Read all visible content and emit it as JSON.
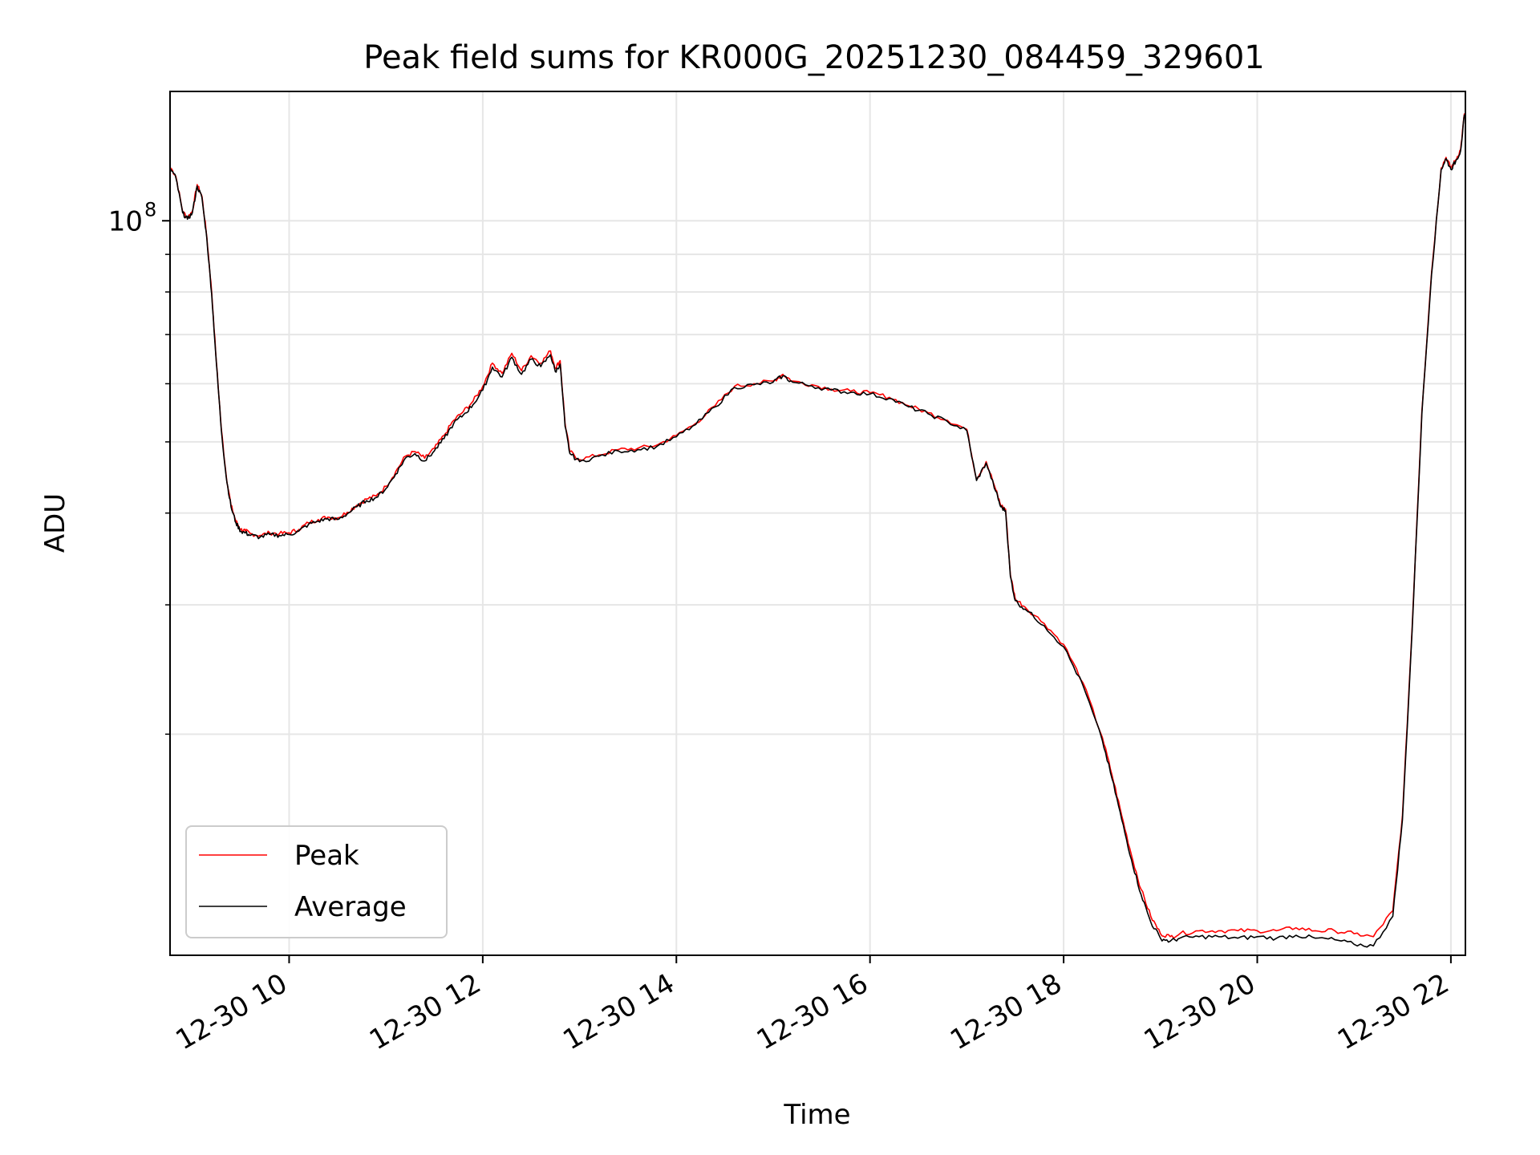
{
  "chart_data": {
    "type": "line",
    "title": "Peak field sums for KR000G_20251230_084459_329601",
    "xlabel": "Time",
    "ylabel": "ADU",
    "yscale": "log",
    "xlim": [
      8.77,
      22.15
    ],
    "ylim": [
      10000000,
      150000000
    ],
    "x_ticks": [
      {
        "value": 10,
        "label": "12-30 10"
      },
      {
        "value": 12,
        "label": "12-30 12"
      },
      {
        "value": 14,
        "label": "12-30 14"
      },
      {
        "value": 16,
        "label": "12-30 16"
      },
      {
        "value": 18,
        "label": "12-30 18"
      },
      {
        "value": 20,
        "label": "12-30 20"
      },
      {
        "value": 22,
        "label": "12-30 22"
      }
    ],
    "y_major_ticks": [
      {
        "value": 100000000,
        "base": "10",
        "exp": "8"
      }
    ],
    "y_minor_ticks": [
      20000000,
      30000000,
      40000000,
      50000000,
      60000000,
      70000000,
      80000000,
      90000000
    ],
    "grid": true,
    "legend": {
      "position": "lower-left",
      "entries": [
        "Peak",
        "Average"
      ]
    },
    "series": [
      {
        "name": "Peak",
        "color": "#ff0000",
        "x": [
          8.78,
          8.83,
          8.9,
          8.95,
          9.0,
          9.05,
          9.1,
          9.15,
          9.2,
          9.25,
          9.3,
          9.35,
          9.4,
          9.45,
          9.5,
          9.55,
          9.6,
          9.7,
          9.8,
          9.9,
          10.0,
          10.1,
          10.2,
          10.3,
          10.4,
          10.5,
          10.6,
          10.7,
          10.8,
          10.9,
          11.0,
          11.1,
          11.2,
          11.3,
          11.4,
          11.5,
          11.6,
          11.7,
          11.8,
          11.9,
          12.0,
          12.1,
          12.2,
          12.3,
          12.4,
          12.5,
          12.6,
          12.7,
          12.75,
          12.8,
          12.85,
          12.9,
          13.0,
          13.2,
          13.4,
          13.6,
          13.8,
          14.0,
          14.2,
          14.4,
          14.6,
          14.8,
          15.0,
          15.1,
          15.2,
          15.4,
          15.6,
          15.8,
          16.0,
          16.2,
          16.4,
          16.6,
          16.8,
          17.0,
          17.1,
          17.2,
          17.3,
          17.35,
          17.4,
          17.45,
          17.5,
          17.6,
          17.8,
          18.0,
          18.2,
          18.4,
          18.5,
          18.6,
          18.7,
          18.8,
          18.9,
          19.0,
          19.1,
          19.2,
          19.4,
          19.6,
          19.8,
          20.0,
          20.2,
          20.4,
          20.6,
          20.8,
          21.0,
          21.2,
          21.4,
          21.5,
          21.6,
          21.7,
          21.8,
          21.9,
          21.95,
          22.0,
          22.05,
          22.1,
          22.14
        ],
        "y": [
          118000000,
          115000000,
          103000000,
          101000000,
          103000000,
          112000000,
          108000000,
          95000000,
          80000000,
          64000000,
          52000000,
          45000000,
          41000000,
          39000000,
          38000000,
          37800000,
          37500000,
          37300000,
          37600000,
          37500000,
          37600000,
          38000000,
          38800000,
          39200000,
          39500000,
          39400000,
          40100000,
          41000000,
          41800000,
          42200000,
          43500000,
          45500000,
          47800000,
          48500000,
          47500000,
          49000000,
          51000000,
          53500000,
          55000000,
          56800000,
          59500000,
          64000000,
          62000000,
          66000000,
          62500000,
          65500000,
          64000000,
          66500000,
          63000000,
          64500000,
          53000000,
          48500000,
          47300000,
          48000000,
          48800000,
          49000000,
          49500000,
          51000000,
          53000000,
          56000000,
          59500000,
          60000000,
          60500000,
          61800000,
          60500000,
          59800000,
          59000000,
          58600000,
          58300000,
          57500000,
          56000000,
          54800000,
          53500000,
          52000000,
          44500000,
          47000000,
          43000000,
          41000000,
          40500000,
          33000000,
          30600000,
          29800000,
          28300000,
          26500000,
          23500000,
          19800000,
          17600000,
          15500000,
          13700000,
          12300000,
          11300000,
          10700000,
          10600000,
          10700000,
          10800000,
          10800000,
          10800000,
          10800000,
          10800000,
          10900000,
          10800000,
          10800000,
          10700000,
          10600000,
          11500000,
          15500000,
          28000000,
          55000000,
          85000000,
          118000000,
          122000000,
          118000000,
          121000000,
          125000000,
          140000000
        ]
      },
      {
        "name": "Average",
        "color": "#000000",
        "x": [
          8.78,
          8.83,
          8.9,
          8.95,
          9.0,
          9.05,
          9.1,
          9.15,
          9.2,
          9.25,
          9.3,
          9.35,
          9.4,
          9.45,
          9.5,
          9.55,
          9.6,
          9.7,
          9.8,
          9.9,
          10.0,
          10.1,
          10.2,
          10.3,
          10.4,
          10.5,
          10.6,
          10.7,
          10.8,
          10.9,
          11.0,
          11.1,
          11.2,
          11.3,
          11.4,
          11.5,
          11.6,
          11.7,
          11.8,
          11.9,
          12.0,
          12.1,
          12.2,
          12.3,
          12.4,
          12.5,
          12.6,
          12.7,
          12.75,
          12.8,
          12.85,
          12.9,
          13.0,
          13.2,
          13.4,
          13.6,
          13.8,
          14.0,
          14.2,
          14.4,
          14.6,
          14.8,
          15.0,
          15.1,
          15.2,
          15.4,
          15.6,
          15.8,
          16.0,
          16.2,
          16.4,
          16.6,
          16.8,
          17.0,
          17.1,
          17.2,
          17.3,
          17.35,
          17.4,
          17.45,
          17.5,
          17.6,
          17.8,
          18.0,
          18.2,
          18.4,
          18.5,
          18.6,
          18.7,
          18.8,
          18.9,
          19.0,
          19.1,
          19.2,
          19.4,
          19.6,
          19.8,
          20.0,
          20.2,
          20.4,
          20.6,
          20.8,
          21.0,
          21.2,
          21.4,
          21.5,
          21.6,
          21.7,
          21.8,
          21.9,
          21.95,
          22.0,
          22.05,
          22.1,
          22.14
        ],
        "y": [
          117500000,
          114500000,
          102500000,
          100500000,
          102500000,
          111500000,
          107500000,
          94500000,
          79500000,
          63700000,
          51800000,
          44800000,
          40800000,
          38800000,
          37800000,
          37600000,
          37300000,
          37100000,
          37400000,
          37300000,
          37400000,
          37800000,
          38600000,
          39000000,
          39300000,
          39200000,
          39900000,
          40800000,
          41600000,
          42000000,
          43200000,
          45200000,
          47500000,
          48200000,
          47100000,
          48600000,
          50500000,
          53000000,
          54400000,
          56200000,
          58800000,
          63200000,
          61300000,
          65200000,
          61800000,
          64800000,
          63300000,
          65700000,
          62300000,
          63800000,
          52500000,
          48200000,
          47000000,
          47800000,
          48600000,
          48800000,
          49300000,
          50800000,
          52800000,
          55800000,
          59300000,
          59800000,
          60300000,
          61500000,
          60300000,
          59600000,
          58800000,
          58400000,
          58100000,
          57300000,
          55800000,
          54600000,
          53300000,
          51800000,
          44300000,
          46800000,
          42800000,
          40800000,
          40300000,
          32800000,
          30400000,
          29600000,
          28100000,
          26300000,
          23300000,
          19600000,
          17400000,
          15300000,
          13500000,
          12100000,
          11100000,
          10550000,
          10450000,
          10550000,
          10600000,
          10600000,
          10550000,
          10600000,
          10550000,
          10650000,
          10550000,
          10500000,
          10350000,
          10300000,
          11300000,
          15300000,
          27700000,
          54500000,
          84500000,
          117500000,
          121500000,
          117500000,
          120500000,
          124500000,
          139500000
        ]
      }
    ]
  }
}
